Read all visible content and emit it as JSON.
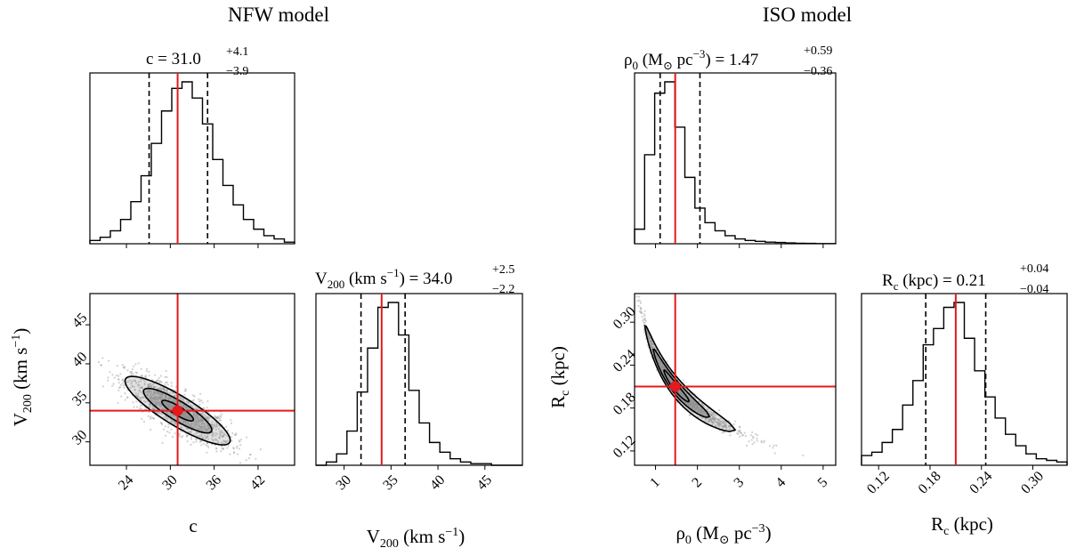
{
  "colors": {
    "median_line": "#e41a1c",
    "axes": "#000000",
    "samples": "#9a9a9a",
    "contour_fill": "#8c8c8c"
  },
  "chart_data": [
    {
      "model": "NFW model",
      "type": "corner",
      "parameters": [
        "c",
        "V200"
      ],
      "params": {
        "c": {
          "median": 31.0,
          "plus": "+4.1",
          "minus": "−3.9",
          "value_text": "31.0",
          "label_base": "c",
          "label_sub": "",
          "label_tail": "",
          "label_unit_parts": [],
          "range": [
            19,
            47
          ],
          "ticks": [
            24,
            30,
            36,
            42
          ],
          "tick_labels": [
            "24",
            "30",
            "36",
            "42"
          ],
          "quantiles": [
            27.1,
            35.1
          ],
          "hist": {
            "edges": [
              19,
              20.4,
              21.8,
              23.2,
              24.6,
              26,
              27.4,
              28.8,
              30.2,
              31.6,
              33,
              34.4,
              35.8,
              37.2,
              38.6,
              40,
              41.4,
              42.8,
              44.2,
              45.6,
              47
            ],
            "counts": [
              0.02,
              0.04,
              0.08,
              0.15,
              0.26,
              0.42,
              0.62,
              0.82,
              0.96,
              1.0,
              0.9,
              0.74,
              0.52,
              0.36,
              0.24,
              0.15,
              0.09,
              0.05,
              0.03,
              0.01
            ]
          }
        },
        "V200": {
          "median": 34.0,
          "plus": "+2.5",
          "minus": "−2.2",
          "value_text": "34.0",
          "label_base": "V",
          "label_sub": "200",
          "label_tail": " (km s",
          "label_unit_parts": [
            "km s",
            "−1",
            ")"
          ],
          "range": [
            27,
            49
          ],
          "ticks": [
            30,
            35,
            40,
            45
          ],
          "tick_labels": [
            "30",
            "35",
            "40",
            "45"
          ],
          "quantiles": [
            31.8,
            36.5
          ],
          "hist": {
            "edges": [
              27,
              28.1,
              29.2,
              30.3,
              31.4,
              32.5,
              33.6,
              34.7,
              35.8,
              36.9,
              38,
              39.1,
              40.2,
              41.3,
              42.4,
              43.5,
              44.6,
              45.7,
              46.8,
              47.9,
              49
            ],
            "counts": [
              0.0,
              0.02,
              0.07,
              0.21,
              0.45,
              0.72,
              0.97,
              1.0,
              0.8,
              0.46,
              0.26,
              0.14,
              0.08,
              0.04,
              0.02,
              0.01,
              0.01,
              0.0,
              0.0,
              0.0
            ]
          }
        }
      },
      "scatter_ylabel_parts": [
        "V",
        "200",
        " (km s",
        "−1",
        ")"
      ],
      "scatter_xlabel": "c",
      "hist_xlabel_parts": [
        "V",
        "200",
        " (km s",
        "−1",
        ")"
      ],
      "diag_top_xlabel": "",
      "scatter": {
        "x_param": "c",
        "y_param": "V200",
        "point": [
          31.0,
          34.0
        ]
      }
    },
    {
      "model": "ISO model",
      "type": "corner",
      "parameters": [
        "rho0",
        "Rc"
      ],
      "params": {
        "rho0": {
          "median": 1.47,
          "plus": "+0.59",
          "minus": "−0.36",
          "value_text": "1.47",
          "range": [
            0.5,
            5.3
          ],
          "ticks": [
            1,
            2,
            3,
            4,
            5
          ],
          "tick_labels": [
            "1",
            "2",
            "3",
            "4",
            "5"
          ],
          "quantiles": [
            1.11,
            2.06
          ],
          "hist": {
            "edges": [
              0.5,
              0.74,
              0.98,
              1.22,
              1.46,
              1.7,
              1.94,
              2.18,
              2.42,
              2.66,
              2.9,
              3.14,
              3.38,
              3.62,
              3.86,
              4.1,
              4.34,
              4.58,
              4.82,
              5.06,
              5.3
            ],
            "counts": [
              0.09,
              0.55,
              0.93,
              1.0,
              0.72,
              0.41,
              0.22,
              0.13,
              0.08,
              0.05,
              0.03,
              0.02,
              0.015,
              0.01,
              0.008,
              0.005,
              0.003,
              0.002,
              0.001,
              0.001
            ]
          }
        },
        "Rc": {
          "median": 0.21,
          "plus": "+0.04",
          "minus": "−0.04",
          "value_text": "0.21",
          "range": [
            0.1,
            0.34
          ],
          "ticks": [
            0.12,
            0.18,
            0.24,
            0.3
          ],
          "tick_labels": [
            "0.12",
            "0.18",
            "0.24",
            "0.30"
          ],
          "quantiles": [
            0.175,
            0.245
          ],
          "hist": {
            "edges": [
              0.1,
              0.112,
              0.124,
              0.136,
              0.148,
              0.16,
              0.172,
              0.184,
              0.196,
              0.208,
              0.22,
              0.232,
              0.244,
              0.256,
              0.268,
              0.28,
              0.292,
              0.304,
              0.316,
              0.328,
              0.34
            ],
            "counts": [
              0.06,
              0.08,
              0.14,
              0.22,
              0.37,
              0.52,
              0.74,
              0.84,
              0.97,
              1.0,
              0.78,
              0.58,
              0.42,
              0.29,
              0.19,
              0.12,
              0.07,
              0.04,
              0.03,
              0.02
            ]
          }
        }
      },
      "scatter": {
        "x_param": "rho0",
        "y_param": "Rc",
        "point": [
          1.47,
          0.21
        ]
      }
    }
  ],
  "labels": {
    "nfw_title": "NFW model",
    "iso_title": "ISO model",
    "c_eq": "c = 31.0",
    "c_plus": "+4.1",
    "c_minus": "−3.9",
    "v_title_V": "V",
    "v_title_sub": "200",
    "v_title_mid": " (km s",
    "v_title_sup": "−1",
    "v_title_end": ") = 34.0",
    "v_plus": "+2.5",
    "v_minus": "−2.2",
    "rho_title_rho": "ρ",
    "rho_title_sub": "0",
    "rho_title_mid": " (M",
    "rho_title_sun": "⊙",
    "rho_title_pc": " pc",
    "rho_title_sup": "−3",
    "rho_title_end": ") = 1.47",
    "rho_plus": "+0.59",
    "rho_minus": "−0.36",
    "rc_title_R": "R",
    "rc_title_sub": "c",
    "rc_title_end": " (kpc) = 0.21",
    "rc_plus": "+0.04",
    "rc_minus": "−0.04",
    "nfw_scatter_xlabel": "c",
    "nfw_ylabel_V": "V",
    "nfw_ylabel_sub": "200",
    "nfw_ylabel_mid": " (km s",
    "nfw_ylabel_sup": "−1",
    "nfw_ylabel_end": ")",
    "nfw_hist_xlabel_V": "V",
    "nfw_hist_xlabel_sub": "200",
    "nfw_hist_xlabel_mid": " (km s",
    "nfw_hist_xlabel_sup": "−1",
    "nfw_hist_xlabel_end": ")",
    "iso_xlabel_rho": "ρ",
    "iso_xlabel_sub": "0",
    "iso_xlabel_mid": " (M",
    "iso_xlabel_sun": "⊙",
    "iso_xlabel_pc": " pc",
    "iso_xlabel_sup": "−3",
    "iso_xlabel_end": ")",
    "iso_ylabel_R": "R",
    "iso_ylabel_sub": "c",
    "iso_ylabel_end": " (kpc)",
    "iso_hist_xlabel_R": "R",
    "iso_hist_xlabel_sub": "c",
    "iso_hist_xlabel_end": " (kpc)"
  }
}
